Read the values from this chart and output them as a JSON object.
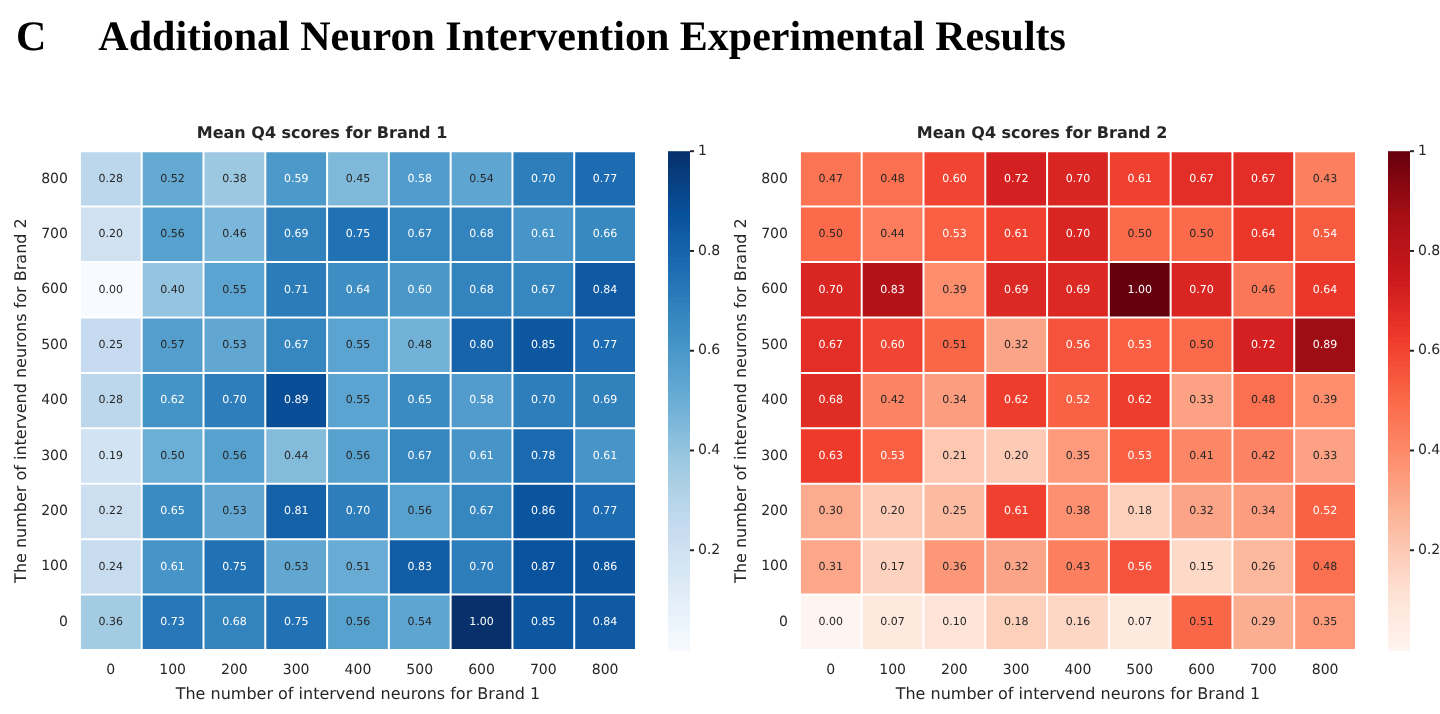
{
  "chart_data": [
    {
      "type": "heatmap",
      "title": "Mean Q4 scores for Brand 1",
      "xlabel": "The number of intervend neurons for Brand 1",
      "ylabel": "The number of intervend neurons for Brand 2",
      "annotations": [
        "C",
        "Additional Neuron Intervention Experimental Results"
      ],
      "categories": [
        "0",
        "100",
        "200",
        "300",
        "400",
        "500",
        "600",
        "700",
        "800"
      ],
      "y_categories": [
        "800",
        "700",
        "600",
        "500",
        "400",
        "300",
        "200",
        "100",
        "0"
      ],
      "cells": [
        [
          0.28,
          0.52,
          0.38,
          0.59,
          0.45,
          0.58,
          0.54,
          0.7,
          0.77
        ],
        [
          0.2,
          0.56,
          0.46,
          0.69,
          0.75,
          0.67,
          0.68,
          0.61,
          0.66
        ],
        [
          0.0,
          0.4,
          0.55,
          0.71,
          0.64,
          0.6,
          0.68,
          0.67,
          0.84
        ],
        [
          0.25,
          0.57,
          0.53,
          0.67,
          0.55,
          0.48,
          0.8,
          0.85,
          0.77
        ],
        [
          0.28,
          0.62,
          0.7,
          0.89,
          0.55,
          0.65,
          0.58,
          0.7,
          0.69
        ],
        [
          0.19,
          0.5,
          0.56,
          0.44,
          0.56,
          0.67,
          0.61,
          0.78,
          0.61
        ],
        [
          0.22,
          0.65,
          0.53,
          0.81,
          0.7,
          0.56,
          0.67,
          0.86,
          0.77
        ],
        [
          0.24,
          0.61,
          0.75,
          0.53,
          0.51,
          0.83,
          0.7,
          0.87,
          0.86
        ],
        [
          0.36,
          0.73,
          0.68,
          0.75,
          0.56,
          0.54,
          1.0,
          0.85,
          0.84
        ]
      ],
      "cell_labels": [
        [
          "0.28",
          "0.52",
          "0.38",
          "0.59",
          "0.45",
          "0.58",
          "0.54",
          "0.70",
          "0.77"
        ],
        [
          "0.20",
          "0.56",
          "0.46",
          "0.69",
          "0.75",
          "0.67",
          "0.68",
          "0.61",
          "0.66"
        ],
        [
          "0.00",
          "0.40",
          "0.55",
          "0.71",
          "0.64",
          "0.60",
          "0.68",
          "0.67",
          "0.84"
        ],
        [
          "0.25",
          "0.57",
          "0.53",
          "0.67",
          "0.55",
          "0.48",
          "0.80",
          "0.85",
          "0.77"
        ],
        [
          "0.28",
          "0.62",
          "0.70",
          "0.89",
          "0.55",
          "0.65",
          "0.58",
          "0.70",
          "0.69"
        ],
        [
          "0.19",
          "0.50",
          "0.56",
          "0.44",
          "0.56",
          "0.67",
          "0.61",
          "0.78",
          "0.61"
        ],
        [
          "0.22",
          "0.65",
          "0.53",
          "0.81",
          "0.70",
          "0.56",
          "0.67",
          "0.86",
          "0.77"
        ],
        [
          "0.24",
          "0.61",
          "0.75",
          "0.53",
          "0.51",
          "0.83",
          "0.70",
          "0.87",
          "0.86"
        ],
        [
          "0.36",
          "0.73",
          "0.68",
          "0.75",
          "0.56",
          "0.54",
          "1.00",
          "0.85",
          "0.84"
        ]
      ],
      "clim": [
        0,
        1
      ],
      "cticks": [
        0.2,
        0.4,
        0.6,
        0.8,
        {
          "value": 1,
          "label": "1"
        }
      ]
    },
    {
      "type": "heatmap",
      "title": "Mean Q4 scores for Brand 2",
      "xlabel": "The number of intervend neurons for Brand 1",
      "ylabel": "The number of intervend neurons for Brand 2",
      "categories": [
        "0",
        "100",
        "200",
        "300",
        "400",
        "500",
        "600",
        "700",
        "800"
      ],
      "y_categories": [
        "800",
        "700",
        "600",
        "500",
        "400",
        "300",
        "200",
        "100",
        "0"
      ],
      "cells": [
        [
          0.47,
          0.48,
          0.6,
          0.72,
          0.7,
          0.61,
          0.67,
          0.67,
          0.43
        ],
        [
          0.5,
          0.44,
          0.53,
          0.61,
          0.7,
          0.5,
          0.5,
          0.64,
          0.54
        ],
        [
          0.7,
          0.83,
          0.39,
          0.69,
          0.69,
          1.0,
          0.7,
          0.46,
          0.64
        ],
        [
          0.67,
          0.6,
          0.51,
          0.32,
          0.56,
          0.53,
          0.5,
          0.72,
          0.89
        ],
        [
          0.68,
          0.42,
          0.34,
          0.62,
          0.52,
          0.62,
          0.33,
          0.48,
          0.39
        ],
        [
          0.63,
          0.53,
          0.21,
          0.2,
          0.35,
          0.53,
          0.41,
          0.42,
          0.33
        ],
        [
          0.3,
          0.2,
          0.25,
          0.61,
          0.38,
          0.18,
          0.32,
          0.34,
          0.52
        ],
        [
          0.31,
          0.17,
          0.36,
          0.32,
          0.43,
          0.56,
          0.15,
          0.26,
          0.48
        ],
        [
          0.0,
          0.07,
          0.1,
          0.18,
          0.16,
          0.07,
          0.51,
          0.29,
          0.35
        ]
      ],
      "cell_labels": [
        [
          "0.47",
          "0.48",
          "0.60",
          "0.72",
          "0.70",
          "0.61",
          "0.67",
          "0.67",
          "0.43"
        ],
        [
          "0.50",
          "0.44",
          "0.53",
          "0.61",
          "0.70",
          "0.50",
          "0.50",
          "0.64",
          "0.54"
        ],
        [
          "0.70",
          "0.83",
          "0.39",
          "0.69",
          "0.69",
          "1.00",
          "0.70",
          "0.46",
          "0.64"
        ],
        [
          "0.67",
          "0.60",
          "0.51",
          "0.32",
          "0.56",
          "0.53",
          "0.50",
          "0.72",
          "0.89"
        ],
        [
          "0.68",
          "0.42",
          "0.34",
          "0.62",
          "0.52",
          "0.62",
          "0.33",
          "0.48",
          "0.39"
        ],
        [
          "0.63",
          "0.53",
          "0.21",
          "0.20",
          "0.35",
          "0.53",
          "0.41",
          "0.42",
          "0.33"
        ],
        [
          "0.30",
          "0.20",
          "0.25",
          "0.61",
          "0.38",
          "0.18",
          "0.32",
          "0.34",
          "0.52"
        ],
        [
          "0.31",
          "0.17",
          "0.36",
          "0.32",
          "0.43",
          "0.56",
          "0.15",
          "0.26",
          "0.48"
        ],
        [
          "0.00",
          "0.07",
          "0.10",
          "0.18",
          "0.16",
          "0.07",
          "0.51",
          "0.29",
          "0.35"
        ]
      ],
      "clim": [
        0,
        1
      ],
      "cticks": [
        0.2,
        0.4,
        0.6,
        0.8,
        {
          "value": 1,
          "label": "1"
        }
      ]
    }
  ]
}
